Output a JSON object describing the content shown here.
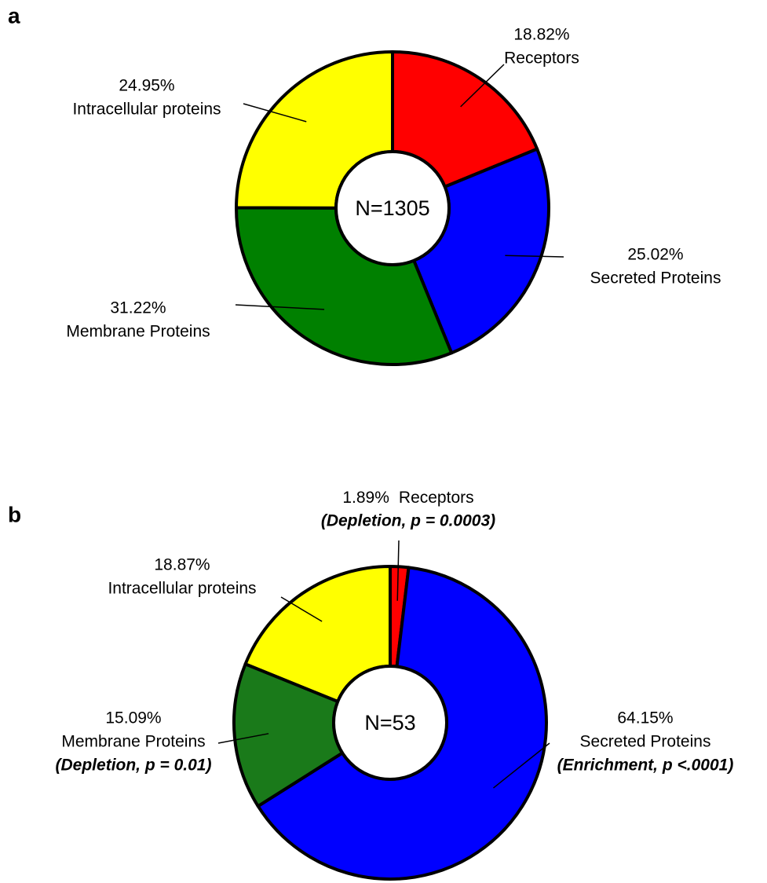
{
  "chart_data": [
    {
      "type": "donut",
      "panel": "a",
      "center_text": "N=1305",
      "categories": [
        "Receptors",
        "Secreted Proteins",
        "Membrane Proteins",
        "Intracellular proteins"
      ],
      "values": [
        18.82,
        25.02,
        31.22,
        24.95
      ],
      "value_labels": [
        "18.82%",
        "25.02%",
        "31.22%",
        "24.95%"
      ],
      "colors": [
        "#ff0000",
        "#0000ff",
        "#008000",
        "#ffff00"
      ]
    },
    {
      "type": "donut",
      "panel": "b",
      "center_text": "N=53",
      "categories": [
        "Receptors",
        "Secreted Proteins",
        "Membrane Proteins",
        "Intracellular proteins"
      ],
      "values": [
        1.89,
        64.15,
        15.09,
        18.87
      ],
      "value_labels": [
        "1.89%",
        "64.15%",
        "15.09%",
        "18.87%"
      ],
      "notes": [
        "(Depletion, p = 0.0003)",
        "(Enrichment, p <.0001)",
        "(Depletion, p = 0.01)",
        null
      ],
      "colors": [
        "#ff0000",
        "#0000ff",
        "#1a7a1a",
        "#ffff00"
      ]
    }
  ]
}
